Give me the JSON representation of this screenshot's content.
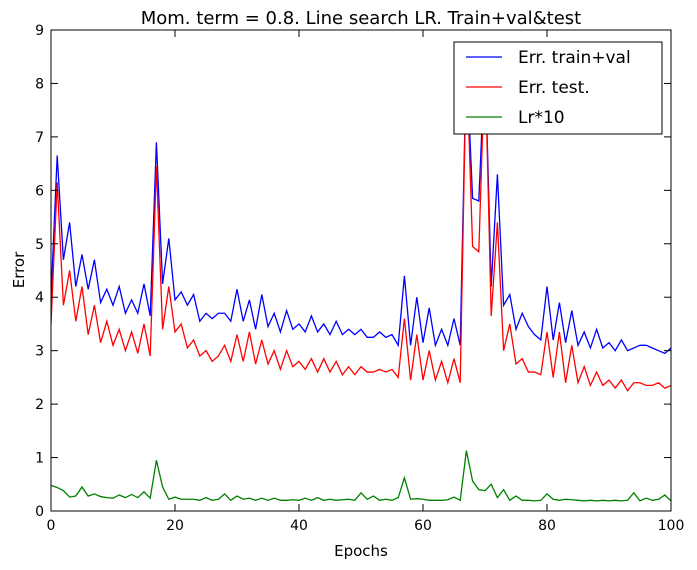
{
  "chart_data": {
    "type": "line",
    "title": "Mom. term = 0.8. Line search LR. Train+val&test",
    "xlabel": "Epochs",
    "ylabel": "Error",
    "xlim": [
      0,
      100
    ],
    "ylim": [
      0,
      9
    ],
    "xticks": [
      "0",
      "20",
      "40",
      "60",
      "80",
      "100"
    ],
    "yticks": [
      "0",
      "1",
      "2",
      "3",
      "4",
      "5",
      "6",
      "7",
      "8",
      "9"
    ],
    "grid": false,
    "legend_position": "top-right",
    "x": [
      0,
      1,
      2,
      3,
      4,
      5,
      6,
      7,
      8,
      9,
      10,
      11,
      12,
      13,
      14,
      15,
      16,
      17,
      18,
      19,
      20,
      21,
      22,
      23,
      24,
      25,
      26,
      27,
      28,
      29,
      30,
      31,
      32,
      33,
      34,
      35,
      36,
      37,
      38,
      39,
      40,
      41,
      42,
      43,
      44,
      45,
      46,
      47,
      48,
      49,
      50,
      51,
      52,
      53,
      54,
      55,
      56,
      57,
      58,
      59,
      60,
      61,
      62,
      63,
      64,
      65,
      66,
      67,
      68,
      69,
      70,
      71,
      72,
      73,
      74,
      75,
      76,
      77,
      78,
      79,
      80,
      81,
      82,
      83,
      84,
      85,
      86,
      87,
      88,
      89,
      90,
      91,
      92,
      93,
      94,
      95,
      96,
      97,
      98,
      99,
      100
    ],
    "series": [
      {
        "name": "Err. train+val",
        "color": "#0000ff",
        "values": [
          4.0,
          6.65,
          4.7,
          5.4,
          4.2,
          4.8,
          4.15,
          4.7,
          3.9,
          4.15,
          3.85,
          4.2,
          3.7,
          3.95,
          3.7,
          4.25,
          3.65,
          6.9,
          4.25,
          5.1,
          3.95,
          4.1,
          3.85,
          4.05,
          3.55,
          3.7,
          3.6,
          3.7,
          3.7,
          3.55,
          4.15,
          3.55,
          3.95,
          3.4,
          4.05,
          3.45,
          3.7,
          3.35,
          3.75,
          3.4,
          3.5,
          3.35,
          3.65,
          3.35,
          3.5,
          3.3,
          3.55,
          3.3,
          3.4,
          3.3,
          3.4,
          3.25,
          3.25,
          3.35,
          3.25,
          3.3,
          3.1,
          4.4,
          3.1,
          4.0,
          3.15,
          3.8,
          3.1,
          3.4,
          3.1,
          3.6,
          3.1,
          8.5,
          5.85,
          5.8,
          8.5,
          4.2,
          6.3,
          3.85,
          4.05,
          3.4,
          3.7,
          3.45,
          3.3,
          3.2,
          4.2,
          3.2,
          3.9,
          3.15,
          3.75,
          3.1,
          3.35,
          3.05,
          3.4,
          3.05,
          3.15,
          3.0,
          3.2,
          3.0,
          3.05,
          3.1,
          3.1,
          3.05,
          3.0,
          2.95,
          3.05
        ]
      },
      {
        "name": "Err. test.",
        "color": "#ff0000",
        "values": [
          3.5,
          6.15,
          3.85,
          4.5,
          3.55,
          4.2,
          3.3,
          3.85,
          3.15,
          3.55,
          3.1,
          3.4,
          3.0,
          3.35,
          2.95,
          3.5,
          2.9,
          6.45,
          3.4,
          4.2,
          3.35,
          3.5,
          3.05,
          3.2,
          2.9,
          3.0,
          2.8,
          2.9,
          3.1,
          2.8,
          3.3,
          2.8,
          3.35,
          2.75,
          3.2,
          2.75,
          3.0,
          2.65,
          3.0,
          2.7,
          2.8,
          2.65,
          2.85,
          2.6,
          2.85,
          2.6,
          2.8,
          2.55,
          2.7,
          2.55,
          2.7,
          2.6,
          2.6,
          2.65,
          2.6,
          2.65,
          2.5,
          3.6,
          2.45,
          3.3,
          2.45,
          3.0,
          2.45,
          2.8,
          2.4,
          2.85,
          2.4,
          8.5,
          4.95,
          4.85,
          8.5,
          3.65,
          5.4,
          3.0,
          3.5,
          2.75,
          2.85,
          2.6,
          2.6,
          2.55,
          3.35,
          2.5,
          3.35,
          2.4,
          3.1,
          2.4,
          2.7,
          2.35,
          2.6,
          2.35,
          2.45,
          2.3,
          2.45,
          2.25,
          2.4,
          2.4,
          2.35,
          2.35,
          2.4,
          2.3,
          2.35
        ]
      },
      {
        "name": "Lr*10",
        "color": "#008000",
        "values": [
          0.48,
          0.44,
          0.38,
          0.26,
          0.28,
          0.45,
          0.28,
          0.32,
          0.27,
          0.25,
          0.24,
          0.3,
          0.25,
          0.31,
          0.25,
          0.36,
          0.24,
          0.95,
          0.45,
          0.22,
          0.26,
          0.22,
          0.22,
          0.22,
          0.2,
          0.25,
          0.2,
          0.22,
          0.32,
          0.2,
          0.28,
          0.22,
          0.24,
          0.2,
          0.24,
          0.2,
          0.24,
          0.2,
          0.2,
          0.21,
          0.2,
          0.24,
          0.2,
          0.25,
          0.2,
          0.22,
          0.2,
          0.21,
          0.22,
          0.2,
          0.34,
          0.22,
          0.28,
          0.2,
          0.22,
          0.2,
          0.25,
          0.62,
          0.22,
          0.23,
          0.22,
          0.2,
          0.2,
          0.2,
          0.21,
          0.26,
          0.2,
          1.13,
          0.56,
          0.4,
          0.38,
          0.5,
          0.25,
          0.4,
          0.2,
          0.28,
          0.2,
          0.2,
          0.19,
          0.2,
          0.32,
          0.22,
          0.2,
          0.22,
          0.21,
          0.2,
          0.19,
          0.2,
          0.19,
          0.2,
          0.19,
          0.2,
          0.19,
          0.2,
          0.34,
          0.19,
          0.24,
          0.2,
          0.22,
          0.3,
          0.19
        ]
      }
    ]
  }
}
